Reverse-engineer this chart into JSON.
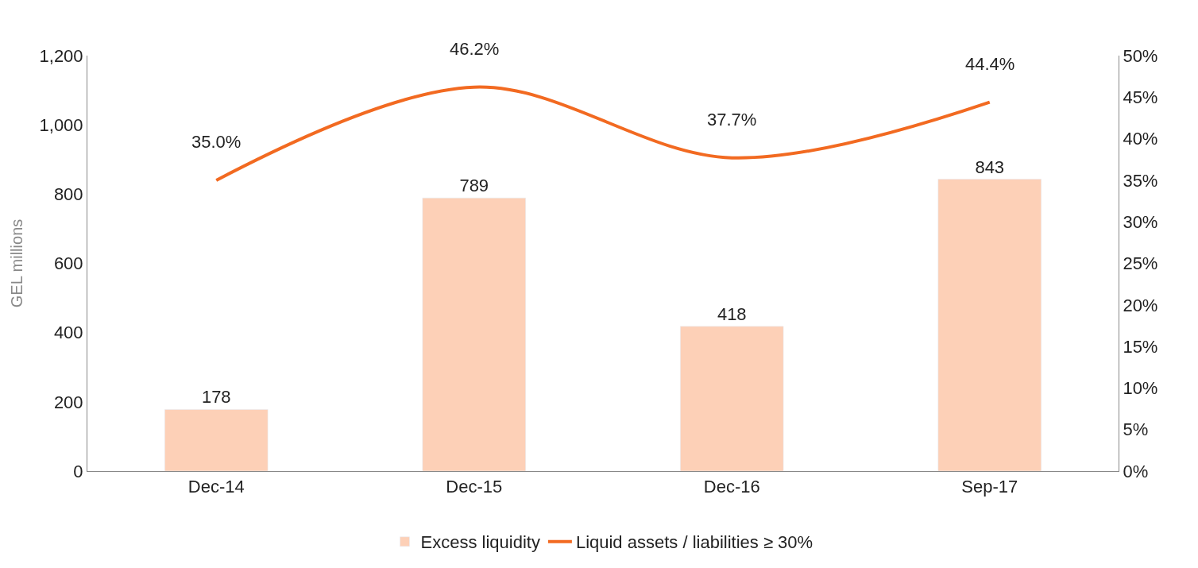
{
  "chart_data": {
    "type": "bar",
    "ylabel": "GEL millions",
    "categories": [
      "Dec-14",
      "Dec-15",
      "Dec-16",
      "Sep-17"
    ],
    "series": [
      {
        "name": "Excess liquidity",
        "color": "#fdd0b7",
        "values": [
          178,
          789,
          418,
          843
        ],
        "value_labels": [
          "178",
          "789",
          "418",
          "843"
        ]
      },
      {
        "name": "Liquid assets / liabilities ≥ 30%",
        "type": "line",
        "axis": "y2",
        "color": "#f26a21",
        "values": [
          35.0,
          46.2,
          37.7,
          44.4
        ],
        "value_labels": [
          "35.0%",
          "46.2%",
          "37.7%",
          "44.4%"
        ],
        "marker": "none",
        "line_style": "solid"
      }
    ],
    "ylim": [
      0,
      1200
    ],
    "yticks": [
      0,
      200,
      400,
      600,
      800,
      {
        "value": 1000,
        "label": "1,000"
      },
      {
        "value": 1200,
        "label": "1,200"
      }
    ],
    "y2lim": [
      0,
      50
    ],
    "y2ticks": [
      {
        "value": 0,
        "label": "0%"
      },
      {
        "value": 5,
        "label": "5%"
      },
      {
        "value": 10,
        "label": "10%"
      },
      {
        "value": 15,
        "label": "15%"
      },
      {
        "value": 20,
        "label": "20%"
      },
      {
        "value": 25,
        "label": "25%"
      },
      {
        "value": 30,
        "label": "30%"
      },
      {
        "value": 35,
        "label": "35%"
      },
      {
        "value": 40,
        "label": "40%"
      },
      {
        "value": 45,
        "label": "45%"
      },
      {
        "value": 50,
        "label": "50%"
      }
    ],
    "legend": "bottom"
  }
}
